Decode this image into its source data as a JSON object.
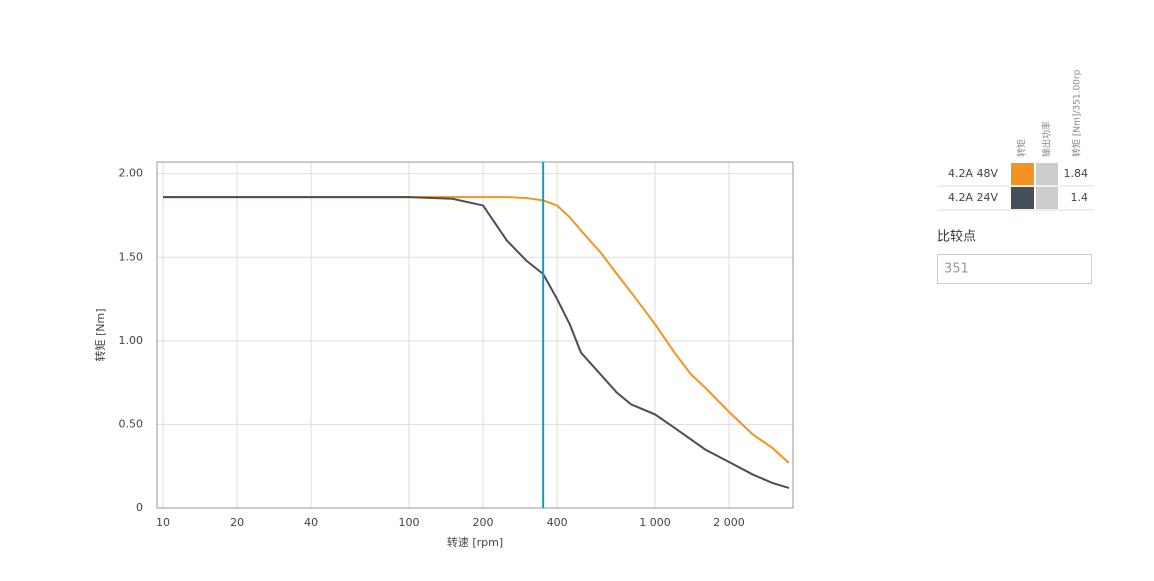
{
  "chart_data": {
    "type": "line",
    "x_label": "转速 [rpm]",
    "y_label": "转矩 [Nm]",
    "x": [
      10,
      20,
      50,
      100,
      150,
      200,
      250,
      300,
      351,
      400,
      450,
      500,
      600,
      700,
      800,
      1000,
      1200,
      1400,
      1600,
      2000,
      2500,
      3000,
      3500
    ],
    "series": [
      {
        "name": "4.2A 48V",
        "color": "#f39323",
        "values": [
          1.86,
          1.86,
          1.86,
          1.86,
          1.86,
          1.86,
          1.86,
          1.855,
          1.84,
          1.81,
          1.74,
          1.66,
          1.53,
          1.4,
          1.29,
          1.1,
          0.93,
          0.8,
          0.72,
          0.575,
          0.44,
          0.36,
          0.27
        ]
      },
      {
        "name": "4.2A 24V",
        "color": "#474f59",
        "values": [
          1.86,
          1.86,
          1.86,
          1.86,
          1.85,
          1.81,
          1.6,
          1.48,
          1.4,
          1.25,
          1.1,
          0.93,
          0.8,
          0.69,
          0.62,
          0.56,
          0.48,
          0.41,
          0.35,
          0.275,
          0.2,
          0.15,
          0.12
        ]
      }
    ],
    "log_x": true,
    "xlim": [
      9.45,
      3640
    ],
    "xticks": [
      10,
      20,
      40,
      100,
      200,
      400,
      {
        "value": 1000,
        "label": "1 000"
      },
      {
        "value": 2000,
        "label": "2 000"
      }
    ],
    "ylim": [
      0,
      2.07
    ],
    "yticks": [
      0,
      {
        "value": 0.5,
        "label": "0.50"
      },
      {
        "value": 1,
        "label": "1.00"
      },
      {
        "value": 1.5,
        "label": "1.50"
      },
      {
        "value": 2,
        "label": "2.00"
      }
    ],
    "grid": true,
    "compare_x": 351,
    "marker_color": "#1a9bb5"
  },
  "table": {
    "headers": [
      "转矩",
      "输出功率",
      "转矩 [Nm]/351.00rp"
    ],
    "values": [
      1.84,
      1.4
    ]
  },
  "compare": {
    "label": "比较点"
  }
}
